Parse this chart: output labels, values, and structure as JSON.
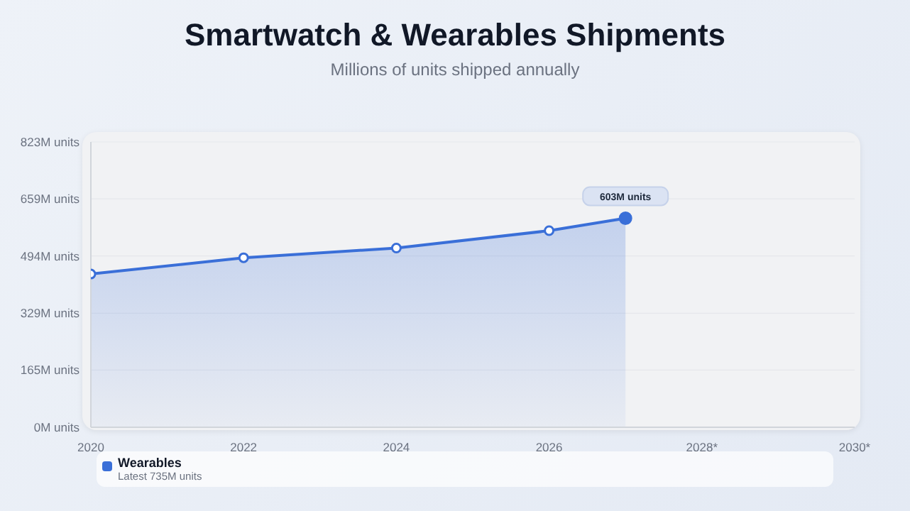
{
  "chart_data": {
    "type": "area",
    "title": "Smartwatch & Wearables Shipments",
    "subtitle": "Millions of units shipped annually",
    "x": [
      2020,
      2022,
      2024,
      2026,
      2027
    ],
    "series": [
      {
        "name": "Wearables",
        "color": "#3a6fd8",
        "values": [
          442,
          489,
          517,
          567,
          603
        ],
        "value_labels": [
          null,
          null,
          null,
          null,
          "603M units"
        ]
      }
    ],
    "xlim": [
      2020,
      2030
    ],
    "xticks": [
      2020,
      2022,
      2024,
      2026,
      {
        "value": 2028,
        "label": "2028*"
      },
      {
        "value": 2030,
        "label": "2030*"
      }
    ],
    "ylim": [
      0,
      823
    ],
    "yticks": [
      {
        "value": 0,
        "label": "0M units"
      },
      {
        "value": 165,
        "label": "165M units"
      },
      {
        "value": 329,
        "label": "329M units"
      },
      {
        "value": 494,
        "label": "494M units"
      },
      {
        "value": 659,
        "label": "659M units"
      },
      {
        "value": 823,
        "label": "823M units"
      }
    ],
    "grid": "y",
    "marker": "circle",
    "legend": "bottom",
    "annotations": [
      "Latest 735M units"
    ]
  }
}
